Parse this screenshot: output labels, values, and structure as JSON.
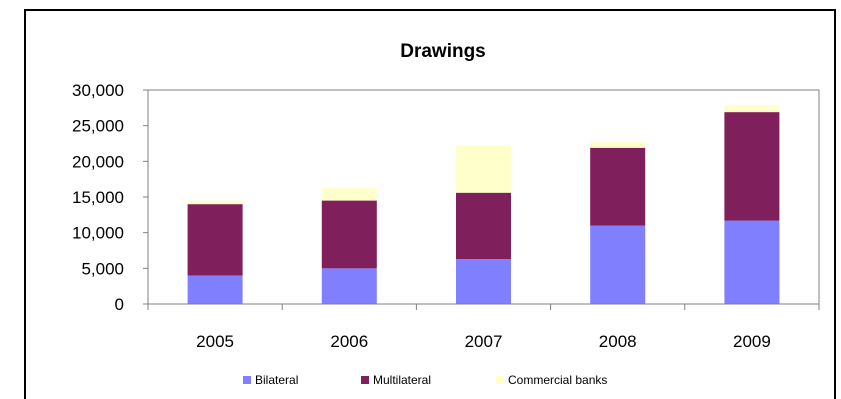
{
  "chart_data": {
    "type": "bar",
    "stacked": true,
    "title": "Drawings",
    "categories": [
      "2005",
      "2006",
      "2007",
      "2008",
      "2009"
    ],
    "series": [
      {
        "name": "Bilateral",
        "color": "#8080ff",
        "values": [
          4000,
          5000,
          6300,
          11000,
          11700
        ]
      },
      {
        "name": "Multilateral",
        "color": "#7f1f5b",
        "values": [
          10000,
          9500,
          9300,
          10900,
          15200
        ]
      },
      {
        "name": "Commercial banks",
        "color": "#ffffcc",
        "values": [
          500,
          1800,
          6600,
          800,
          1000
        ]
      }
    ],
    "ylim": [
      0,
      30000
    ],
    "yticks": [
      0,
      5000,
      10000,
      15000,
      20000,
      25000,
      30000
    ],
    "ytick_labels": [
      "0",
      "5,000",
      "10,000",
      "15,000",
      "20,000",
      "25,000",
      "30,000"
    ],
    "grid": false,
    "legend_position": "bottom"
  }
}
